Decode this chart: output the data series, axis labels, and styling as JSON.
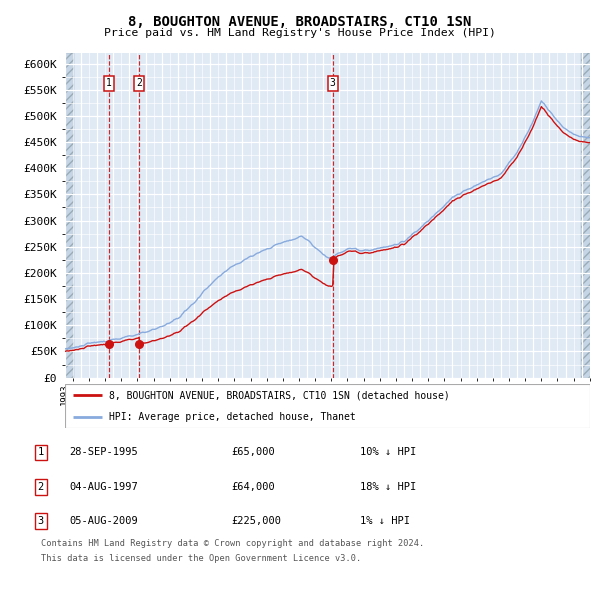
{
  "title": "8, BOUGHTON AVENUE, BROADSTAIRS, CT10 1SN",
  "subtitle": "Price paid vs. HM Land Registry's House Price Index (HPI)",
  "legend_line1": "8, BOUGHTON AVENUE, BROADSTAIRS, CT10 1SN (detached house)",
  "legend_line2": "HPI: Average price, detached house, Thanet",
  "footnote1": "Contains HM Land Registry data © Crown copyright and database right 2024.",
  "footnote2": "This data is licensed under the Open Government Licence v3.0.",
  "sales": [
    {
      "num": 1,
      "date": "28-SEP-1995",
      "price": 65000,
      "pct": "10%",
      "dir": "↓",
      "x_year": 1995.74
    },
    {
      "num": 2,
      "date": "04-AUG-1997",
      "price": 64000,
      "pct": "18%",
      "dir": "↓",
      "x_year": 1997.59
    },
    {
      "num": 3,
      "date": "05-AUG-2009",
      "price": 225000,
      "pct": "1%",
      "dir": "↓",
      "x_year": 2009.59
    }
  ],
  "hpi_color": "#88aadd",
  "price_color": "#cc1111",
  "dot_color": "#cc1111",
  "vline_color": "#cc1111",
  "bg_color": "#e0eaf5",
  "hatch_color": "#c5d5e5",
  "grid_color": "#ffffff",
  "label_box_color": "#cc1111",
  "ylim": [
    0,
    620000
  ],
  "yticks": [
    0,
    50000,
    100000,
    150000,
    200000,
    250000,
    300000,
    350000,
    400000,
    450000,
    500000,
    550000,
    600000
  ],
  "xlim_start": 1993.0,
  "xlim_end": 2025.5
}
